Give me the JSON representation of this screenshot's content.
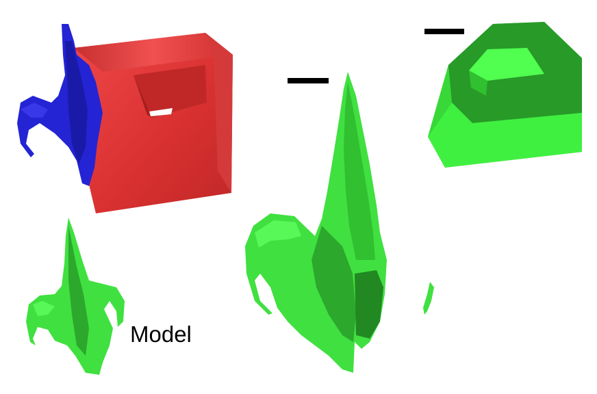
{
  "labels": {
    "model": "Model"
  },
  "colors": {
    "red_box": "#e03030",
    "red_shadow": "#b82020",
    "blue_model": "#2020d0",
    "green_light": "#40f040",
    "green_mid": "#30c030",
    "green_dark": "#208820",
    "marker": "#000000"
  }
}
